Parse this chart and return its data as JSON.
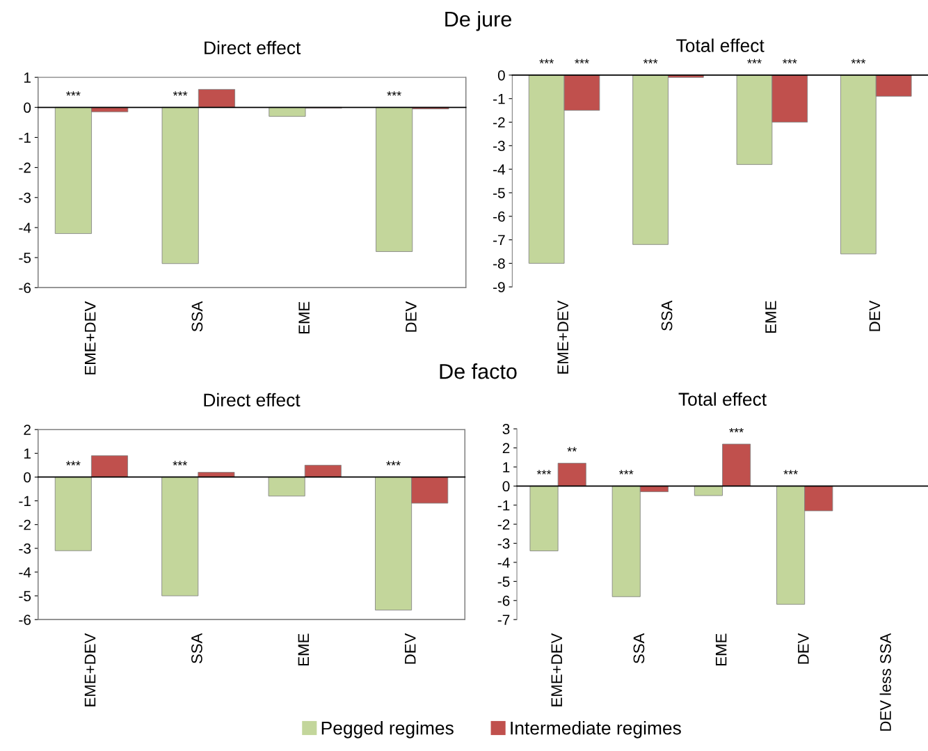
{
  "chart_data": [
    {
      "type": "bar",
      "title": "Direct effect",
      "categories": [
        "EME+DEV",
        "SSA",
        "EME",
        "DEV"
      ],
      "series": [
        {
          "color": "#c3d69b",
          "values": [
            -4.2,
            -5.2,
            -0.3,
            -4.8
          ],
          "value_labels": [
            "***",
            "***",
            null,
            "***"
          ]
        },
        {
          "color": "#c0504d",
          "values": [
            -0.15,
            0.6,
            -0.02,
            -0.05
          ],
          "value_labels": [
            null,
            null,
            null,
            null
          ]
        }
      ],
      "ylim": [
        -6,
        1
      ],
      "yticks": [
        -6,
        -5,
        -4,
        -3,
        -2,
        -1,
        0,
        1
      ],
      "annotations": [
        "De jure"
      ]
    },
    {
      "type": "bar",
      "title": "Total effect",
      "categories": [
        "EME+DEV",
        "SSA",
        "EME",
        "DEV"
      ],
      "series": [
        {
          "color": "#c3d69b",
          "values": [
            -8.0,
            -7.2,
            -3.8,
            -7.6
          ],
          "value_labels": [
            "***",
            "***",
            "***",
            "***"
          ]
        },
        {
          "color": "#c0504d",
          "values": [
            -1.5,
            -0.1,
            -2.0,
            -0.9
          ],
          "value_labels": [
            "***",
            null,
            "***",
            null
          ]
        }
      ],
      "ylim": [
        -9,
        0
      ],
      "yticks": [
        -9,
        -8,
        -7,
        -6,
        -5,
        -4,
        -3,
        -2,
        -1,
        0
      ]
    },
    {
      "type": "bar",
      "title": "Direct effect",
      "categories": [
        "EME+DEV",
        "SSA",
        "EME",
        "DEV"
      ],
      "series": [
        {
          "color": "#c3d69b",
          "values": [
            -3.1,
            -5.0,
            -0.8,
            -5.6
          ],
          "value_labels": [
            "***",
            "***",
            null,
            "***"
          ]
        },
        {
          "color": "#c0504d",
          "values": [
            0.9,
            0.2,
            0.5,
            -1.1
          ],
          "value_labels": [
            null,
            null,
            null,
            null
          ]
        }
      ],
      "ylim": [
        -6,
        2
      ],
      "yticks": [
        -6,
        -5,
        -4,
        -3,
        -2,
        -1,
        0,
        1,
        2
      ],
      "annotations": [
        "De facto"
      ]
    },
    {
      "type": "bar",
      "title": "Total effect",
      "categories": [
        "EME+DEV",
        "SSA",
        "EME",
        "DEV",
        "DEV less SSA"
      ],
      "series": [
        {
          "name": "Pegged regimes",
          "color": "#c3d69b",
          "values": [
            -3.4,
            -5.8,
            -0.5,
            -6.2,
            null
          ],
          "value_labels": [
            "***",
            "***",
            null,
            "***",
            null
          ]
        },
        {
          "name": "Intermediate regimes",
          "color": "#c0504d",
          "values": [
            1.2,
            -0.3,
            2.2,
            -1.3,
            null
          ],
          "value_labels": [
            "**",
            null,
            "***",
            null,
            null
          ]
        }
      ],
      "ylim": [
        -7,
        3
      ],
      "yticks": [
        -7,
        -6,
        -5,
        -4,
        -3,
        -2,
        -1,
        0,
        1,
        2,
        3
      ],
      "legend": "bottom"
    }
  ]
}
